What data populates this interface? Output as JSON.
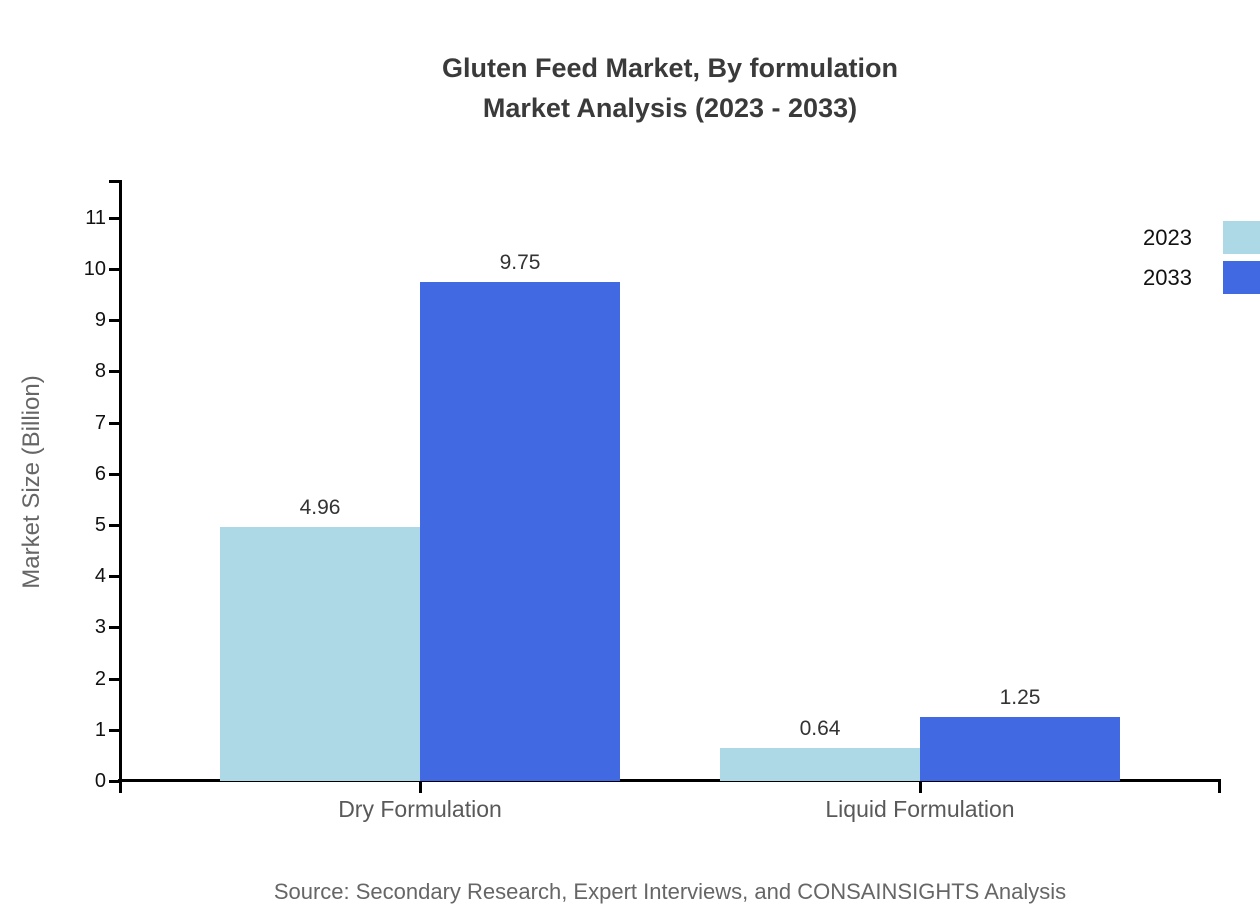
{
  "title": {
    "line1": "Gluten Feed Market, By formulation",
    "line2": "Market Analysis (2023 - 2033)"
  },
  "source": {
    "text": "Source: Secondary Research, Expert Interviews, and CONSAINSIGHTS Analysis"
  },
  "colors": {
    "series_2023": "#ADD8E6",
    "series_2033": "#4169E1",
    "axis": "#000000",
    "title_text": "#3a3a3a",
    "muted_text": "#666666",
    "category_text": "#595959",
    "tick_text": "#111111",
    "value_text": "#333333"
  },
  "chart_data": {
    "type": "bar",
    "title": "Gluten Feed Market, By formulation Market Analysis (2023 - 2033)",
    "categories": [
      "Dry Formulation",
      "Liquid Formulation"
    ],
    "series": [
      {
        "name": "2023",
        "color": "#ADD8E6",
        "values": [
          4.96,
          0.64
        ]
      },
      {
        "name": "2033",
        "color": "#4169E1",
        "values": [
          9.75,
          1.25
        ]
      }
    ],
    "value_labels": [
      [
        "4.96",
        "0.64"
      ],
      [
        "9.75",
        "1.25"
      ]
    ],
    "xlabel": "",
    "ylabel": "Market Size (Billion)",
    "yticks": [
      0,
      1,
      2,
      3,
      4,
      5,
      6,
      7,
      8,
      9,
      10,
      11
    ],
    "ylim": [
      0,
      11.75
    ],
    "grid": false,
    "legend_position": "top-right"
  }
}
